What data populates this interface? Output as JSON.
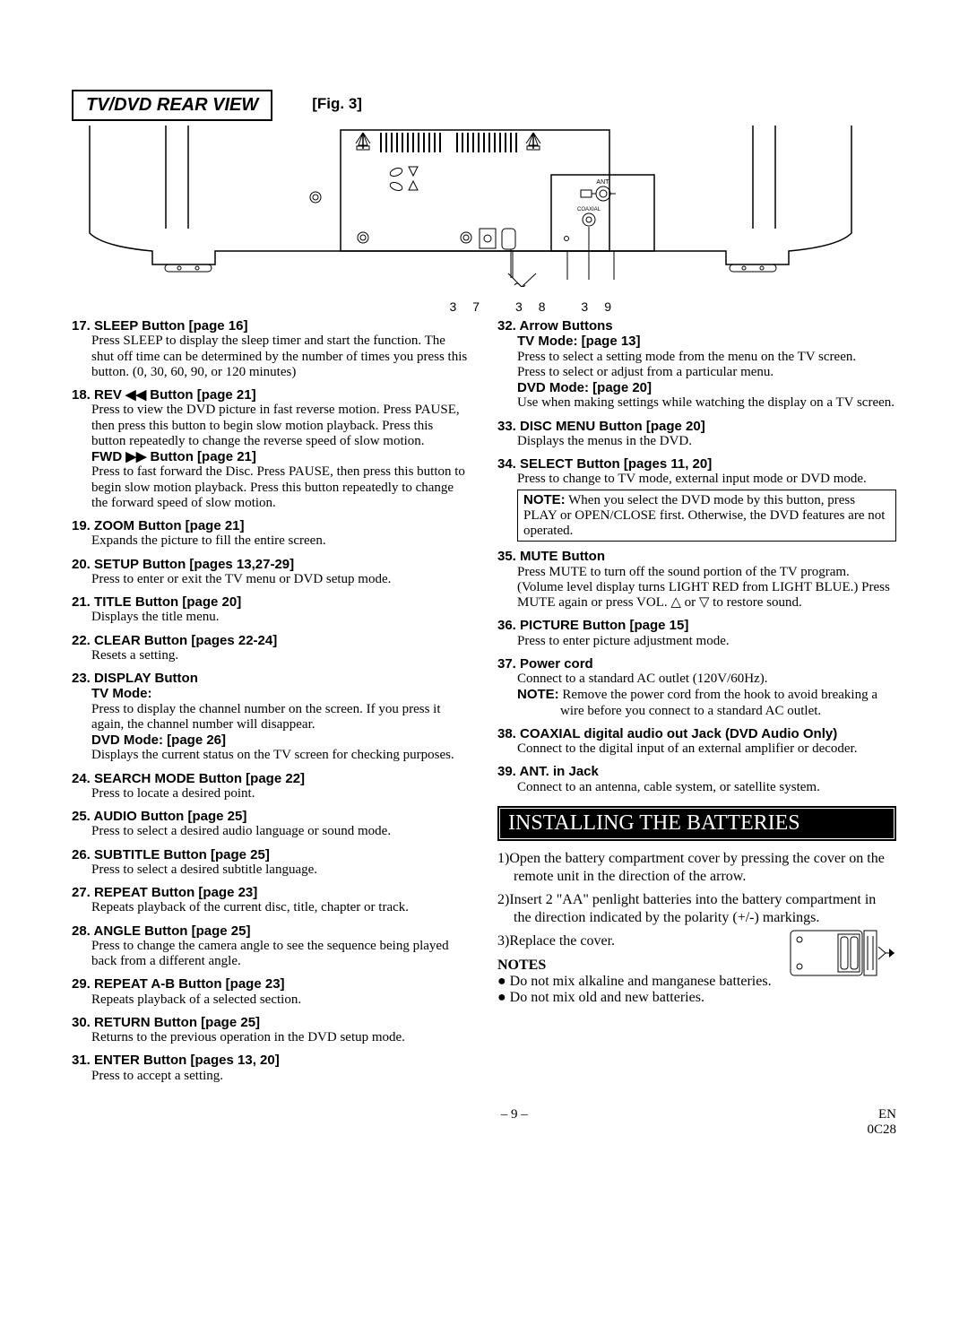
{
  "header": {
    "box": "TV/DVD REAR VIEW",
    "fig": "[Fig. 3]"
  },
  "callouts": "37   38  39",
  "diagram_labels": {
    "ant": "ANT.",
    "coaxial": "COAXIAL"
  },
  "left": [
    {
      "n": "17.",
      "t": "SLEEP Button [page 16]",
      "b": "Press SLEEP to display the sleep timer and start the function. The shut off time can be determined by the number of times you press this button. (0, 30, 60, 90, or 120 minutes)"
    },
    {
      "n": "18.",
      "t": "REV ◀◀ Button [page 21]",
      "b": "Press to view the DVD picture in fast reverse motion. Press PAUSE, then press this button to begin slow motion playback. Press this button repeatedly to change the reverse speed of slow motion.",
      "sub": "FWD ▶▶ Button [page 21]",
      "subBody": "Press to fast forward the Disc. Press PAUSE, then press this button to begin slow motion playback. Press this button repeatedly to change the forward speed of slow motion."
    },
    {
      "n": "19.",
      "t": "ZOOM Button [page 21]",
      "b": "Expands the picture to fill the entire screen."
    },
    {
      "n": "20.",
      "t": "SETUP Button [pages 13,27-29]",
      "b": "Press to enter or exit the TV menu or DVD setup mode."
    },
    {
      "n": "21.",
      "t": "TITLE Button [page 20]",
      "b": "Displays the title menu."
    },
    {
      "n": "22.",
      "t": "CLEAR Button [pages 22-24]",
      "b": "Resets a setting."
    },
    {
      "n": "23.",
      "t": "DISPLAY Button",
      "sub2": "TV Mode:",
      "b": "Press to display the channel number on the screen. If you press it again, the channel number will disappear.",
      "sub": "DVD Mode: [page 26]",
      "subBody": "Displays the current status on the TV screen for checking purposes."
    },
    {
      "n": "24.",
      "t": "SEARCH MODE Button [page 22]",
      "b": "Press to locate a desired point."
    },
    {
      "n": "25.",
      "t": "AUDIO Button [page 25]",
      "b": "Press to select a desired audio language or sound mode."
    },
    {
      "n": "26.",
      "t": "SUBTITLE Button [page 25]",
      "b": "Press to select a desired subtitle language."
    },
    {
      "n": "27.",
      "t": "REPEAT Button [page 23]",
      "b": "Repeats playback of the current disc, title, chapter or track."
    },
    {
      "n": "28.",
      "t": "ANGLE Button [page 25]",
      "b": "Press to change the camera angle to see the sequence being played back from a different angle."
    },
    {
      "n": "29.",
      "t": "REPEAT A-B Button [page 23]",
      "b": "Repeats playback of a selected section."
    },
    {
      "n": "30.",
      "t": "RETURN Button [page 25]",
      "b": "Returns to the previous operation in the DVD setup mode."
    },
    {
      "n": "31.",
      "t": "ENTER Button [pages 13, 20]",
      "b": "Press to accept a setting."
    }
  ],
  "right": [
    {
      "n": "32.",
      "t": "Arrow Buttons",
      "sub2": "TV Mode: [page 13]",
      "b": "Press to select a setting mode from the menu on the TV screen.\nPress to select or adjust from a particular menu.",
      "sub": "DVD Mode: [page 20]",
      "subBody": "Use when making settings while watching the display on a TV screen."
    },
    {
      "n": "33.",
      "t": "DISC MENU Button [page 20]",
      "b": "Displays the menus in the DVD."
    },
    {
      "n": "34.",
      "t": "SELECT Button [pages 11, 20]",
      "b": "Press to change to TV mode, external input mode or DVD mode.",
      "note": "When you select the DVD mode by this button, press PLAY or OPEN/CLOSE first. Otherwise, the DVD features are not operated."
    },
    {
      "n": "35.",
      "t": "MUTE Button",
      "b": "Press MUTE to turn off the sound portion of the TV program. (Volume level display turns LIGHT RED from LIGHT BLUE.) Press MUTE again or press VOL. △ or ▽ to restore sound."
    },
    {
      "n": "36.",
      "t": "PICTURE Button [page 15]",
      "b": "Press to enter picture adjustment mode."
    },
    {
      "n": "37.",
      "t": "Power cord",
      "b": "Connect to a standard AC outlet (120V/60Hz).",
      "inlineNote": "Remove the power cord from the hook to avoid breaking a wire before you connect to a standard AC outlet."
    },
    {
      "n": "38.",
      "t": "COAXIAL digital audio out Jack (DVD Audio Only)",
      "b": "Connect to the digital input of an external amplifier or decoder."
    },
    {
      "n": "39.",
      "t": "ANT. in Jack",
      "b": "Connect to an antenna, cable system, or satellite system."
    }
  ],
  "battery": {
    "title": "INSTALLING THE BATTERIES",
    "steps": [
      "1)Open the battery compartment cover by pressing the cover on the remote unit in the direction of the arrow.",
      "2)Insert 2 \"AA\" penlight batteries into the battery compartment in the direction indicated by the polarity (+/-) markings.",
      "3)Replace the cover."
    ],
    "notesHead": "NOTES",
    "notes": [
      "Do not mix alkaline and manganese batteries.",
      "Do not mix old and new batteries."
    ]
  },
  "footer": {
    "page": "– 9 –",
    "en": "EN",
    "code": "0C28"
  }
}
